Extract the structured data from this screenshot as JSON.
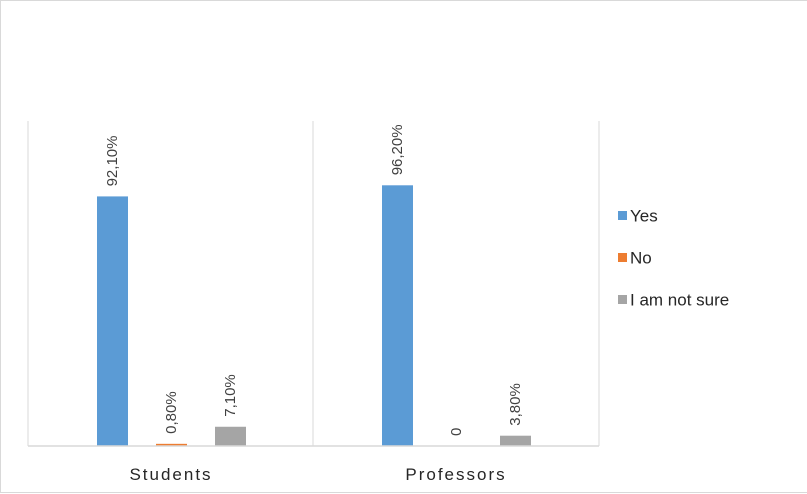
{
  "chart_data": {
    "type": "bar",
    "title": "",
    "xlabel": "",
    "ylabel": "",
    "categories": [
      "Students",
      "Professors"
    ],
    "series": [
      {
        "name": "Yes",
        "color": "#5b9bd5",
        "values": [
          92.1,
          96.2
        ],
        "labels": [
          "92,10%",
          "96,20%"
        ]
      },
      {
        "name": "No",
        "color": "#ed7d31",
        "values": [
          0.8,
          0
        ],
        "labels": [
          "0,80%",
          "0"
        ]
      },
      {
        "name": "I am not sure",
        "color": "#a5a5a5",
        "values": [
          7.1,
          3.8
        ],
        "labels": [
          "7,10%",
          "3,80%"
        ]
      }
    ],
    "ylim": [
      0,
      100
    ],
    "grid": false,
    "legend_position": "right"
  }
}
